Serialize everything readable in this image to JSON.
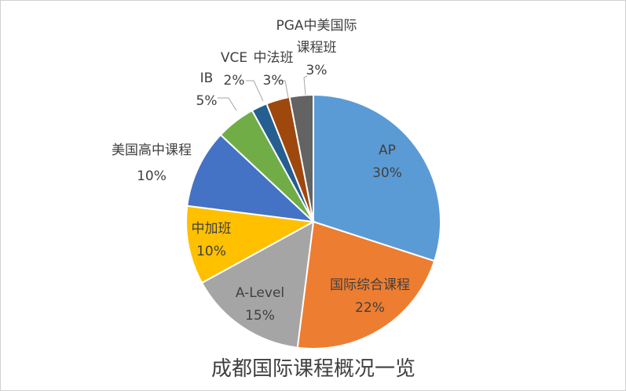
{
  "chart_data": {
    "type": "pie",
    "title": "成都国际课程概况一览",
    "slices": [
      {
        "label": "AP",
        "value": 30,
        "pct": "30%",
        "color": "#5b9bd5"
      },
      {
        "label": "国际综合课程",
        "value": 22,
        "pct": "22%",
        "color": "#ed7d31"
      },
      {
        "label": "A-Level",
        "value": 15,
        "pct": "15%",
        "color": "#a5a5a5"
      },
      {
        "label": "中加班",
        "value": 10,
        "pct": "10%",
        "color": "#ffc000"
      },
      {
        "label": "美国高中课程",
        "value": 10,
        "pct": "10%",
        "color": "#4472c4"
      },
      {
        "label": "IB",
        "value": 5,
        "pct": "5%",
        "color": "#70ad47"
      },
      {
        "label": "VCE",
        "value": 2,
        "pct": "2%",
        "color": "#255e91"
      },
      {
        "label": "中法班",
        "value": 3,
        "pct": "3%",
        "color": "#9e480e"
      },
      {
        "label": "PGA中美国际课程班",
        "value": 3,
        "pct": "3%",
        "color": "#636363"
      }
    ],
    "legend": "none",
    "data_labels": "category-and-percent"
  }
}
